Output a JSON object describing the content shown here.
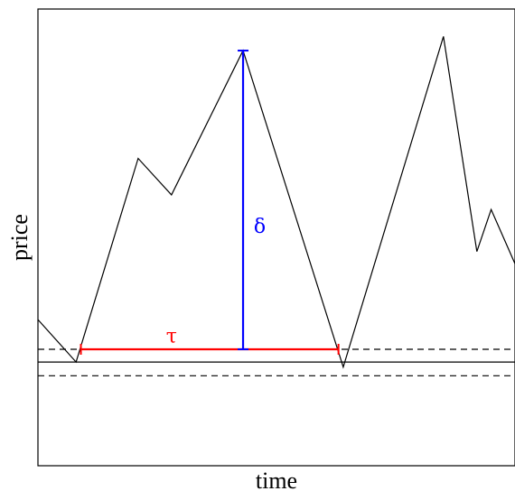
{
  "chart_data": {
    "type": "line",
    "title": "",
    "xlabel": "time",
    "ylabel": "price",
    "xlim": [
      0,
      1
    ],
    "ylim": [
      0,
      1
    ],
    "grid": false,
    "series": [
      {
        "style": "solid",
        "color": "#000000",
        "points": [
          [
            0.0,
            0.32
          ],
          [
            0.08,
            0.227
          ],
          [
            0.21,
            0.673
          ],
          [
            0.28,
            0.593
          ],
          [
            0.43,
            0.909
          ],
          [
            0.64,
            0.216
          ],
          [
            0.85,
            0.94
          ],
          [
            0.92,
            0.469
          ],
          [
            0.95,
            0.561
          ],
          [
            1.0,
            0.442
          ]
        ]
      }
    ],
    "reference_lines": [
      {
        "y": 0.255,
        "style": "dashed",
        "color": "#000000"
      },
      {
        "y": 0.227,
        "style": "solid",
        "color": "#000000"
      },
      {
        "y": 0.197,
        "style": "dashed",
        "color": "#000000"
      }
    ],
    "annotations": [
      {
        "label": "τ",
        "color": "#ff0000",
        "orientation": "horizontal",
        "from": [
          0.09,
          0.255
        ],
        "to": [
          0.63,
          0.255
        ],
        "label_at": [
          0.28,
          0.27
        ]
      },
      {
        "label": "δ",
        "color": "#0000ff",
        "orientation": "vertical",
        "from": [
          0.43,
          0.255
        ],
        "to": [
          0.43,
          0.909
        ],
        "label_at": [
          0.465,
          0.51
        ]
      }
    ]
  }
}
